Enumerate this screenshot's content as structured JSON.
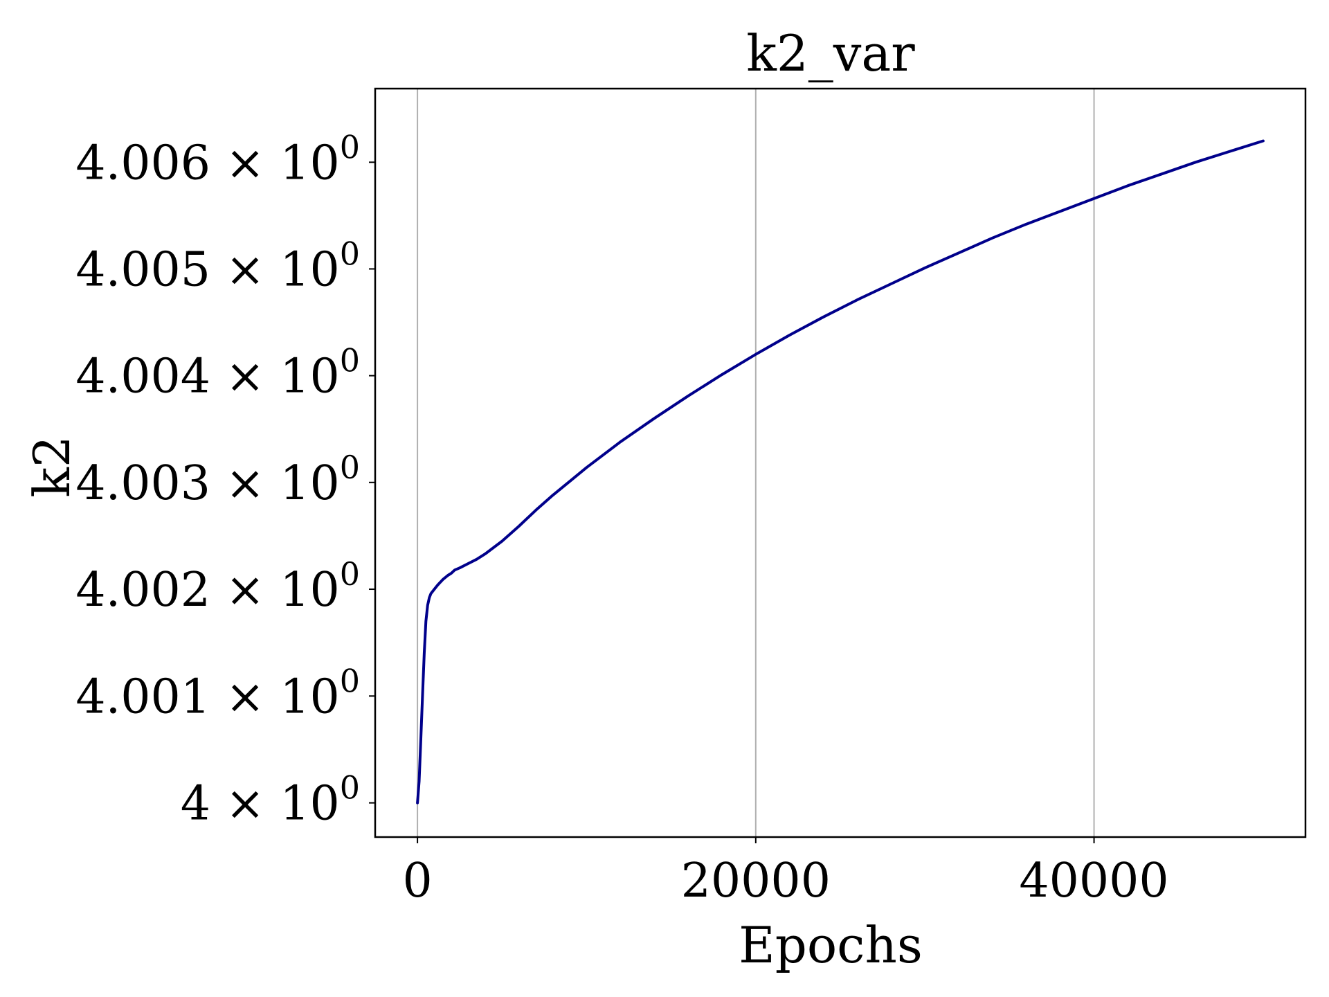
{
  "chart_data": {
    "type": "line",
    "title": "k2_var",
    "xlabel": "Epochs",
    "ylabel": "k2",
    "xlim": [
      -2500,
      52500
    ],
    "ylim": [
      3.99968,
      4.00669
    ],
    "y_scale": "log",
    "grid": {
      "x": true,
      "y": false
    },
    "line_color": "#00008b",
    "x_ticks": [
      {
        "value": 0,
        "label": "0"
      },
      {
        "value": 20000,
        "label": "20000"
      },
      {
        "value": 40000,
        "label": "40000"
      }
    ],
    "y_ticks": [
      {
        "value": 4.0,
        "mantissa": "4",
        "times": "×",
        "base": "10",
        "exp": "0"
      },
      {
        "value": 4.001,
        "mantissa": "4.001",
        "times": "×",
        "base": "10",
        "exp": "0"
      },
      {
        "value": 4.002,
        "mantissa": "4.002",
        "times": "×",
        "base": "10",
        "exp": "0"
      },
      {
        "value": 4.003,
        "mantissa": "4.003",
        "times": "×",
        "base": "10",
        "exp": "0"
      },
      {
        "value": 4.004,
        "mantissa": "4.004",
        "times": "×",
        "base": "10",
        "exp": "0"
      },
      {
        "value": 4.005,
        "mantissa": "4.005",
        "times": "×",
        "base": "10",
        "exp": "0"
      },
      {
        "value": 4.006,
        "mantissa": "4.006",
        "times": "×",
        "base": "10",
        "exp": "0"
      }
    ],
    "series": [
      {
        "x": [
          0,
          100,
          200,
          300,
          400,
          500,
          600,
          700,
          800,
          1000,
          1200,
          1500,
          1800,
          2000,
          2200,
          2500,
          3000,
          3500,
          4000,
          5000,
          6000,
          7000,
          8000,
          9000,
          10000,
          12000,
          14000,
          16000,
          18000,
          20000,
          22000,
          24000,
          26000,
          28000,
          30000,
          32000,
          34000,
          36000,
          38000,
          40000,
          42000,
          44000,
          46000,
          48000,
          50000
        ],
        "y": [
          4.0,
          4.0002,
          4.0006,
          4.001,
          4.0014,
          4.0017,
          4.00185,
          4.00192,
          4.00196,
          4.002,
          4.00204,
          4.00209,
          4.00213,
          4.00215,
          4.00218,
          4.0022,
          4.00224,
          4.00228,
          4.00233,
          4.00245,
          4.00259,
          4.00274,
          4.00288,
          4.00301,
          4.00314,
          4.00338,
          4.0036,
          4.00381,
          4.00401,
          4.0042,
          4.00438,
          4.00455,
          4.00471,
          4.00486,
          4.00501,
          4.00515,
          4.00529,
          4.00542,
          4.00554,
          4.00566,
          4.00578,
          4.00589,
          4.006,
          4.0061,
          4.0062
        ]
      }
    ]
  }
}
